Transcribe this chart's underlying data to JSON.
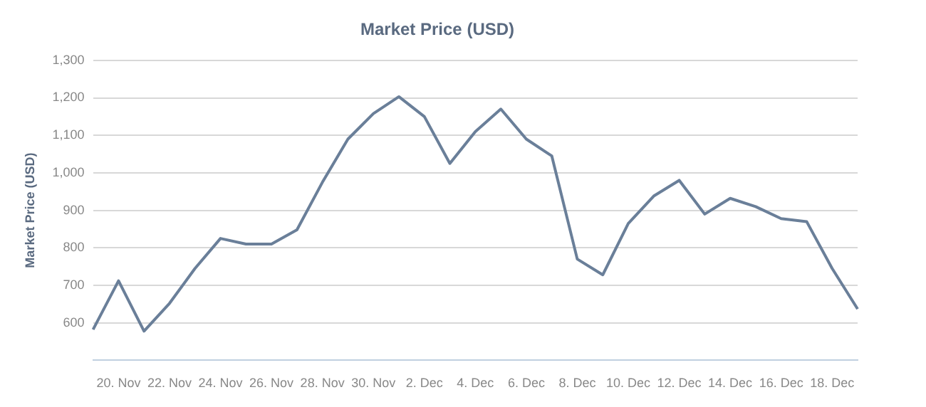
{
  "chart_data": {
    "type": "line",
    "title": "Market Price (USD)",
    "ylabel": "Market Price (USD)",
    "categories": [
      null,
      "20. Nov",
      null,
      "22. Nov",
      null,
      "24. Nov",
      null,
      "26. Nov",
      null,
      "28. Nov",
      null,
      "30. Nov",
      null,
      "2. Dec",
      null,
      "4. Dec",
      null,
      "6. Dec",
      null,
      "8. Dec",
      null,
      "10. Dec",
      null,
      "12. Dec",
      null,
      "14. Dec",
      null,
      "16. Dec",
      null,
      "18. Dec",
      null
    ],
    "series": [
      {
        "color": "#6a7f99",
        "values": [
          582,
          712,
          578,
          652,
          745,
          825,
          810,
          810,
          848,
          975,
          1090,
          1158,
          1203,
          1150,
          1025,
          1110,
          1170,
          1090,
          1045,
          770,
          728,
          865,
          938,
          980,
          890,
          932,
          910,
          878,
          870,
          745,
          637
        ]
      }
    ],
    "ylim": [
      500,
      1300
    ],
    "yticks": [
      {
        "value": 500,
        "label": null
      },
      600,
      700,
      800,
      900,
      {
        "value": 1000,
        "label": "1,000"
      },
      {
        "value": 1100,
        "label": "1,100"
      },
      {
        "value": 1200,
        "label": "1,200"
      },
      {
        "value": 1300,
        "label": "1,300"
      }
    ],
    "grid": "y",
    "legend": false,
    "marker": "none",
    "line_style": "solid"
  }
}
